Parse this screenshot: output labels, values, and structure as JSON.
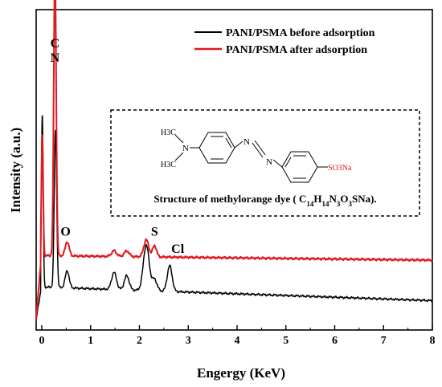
{
  "chart_data": {
    "type": "line",
    "title": "",
    "xlabel": "Engergy (KeV)",
    "ylabel": "Intensity (a.u.)",
    "xlim": [
      -0.15,
      8
    ],
    "xticks": [
      "0",
      "1",
      "2",
      "3",
      "4",
      "5",
      "6",
      "7",
      "8"
    ],
    "grid": false,
    "legend_position": "top-right",
    "series": [
      {
        "name": "PANI/PSMA before adsorption",
        "color": "#000000",
        "baseline": 0.12,
        "baseline_slope": -0.006,
        "peaks": [
          {
            "e": 0.01,
            "h": 0.6,
            "w": 0.018
          },
          {
            "e": 0.28,
            "h": 0.55,
            "w": 0.025
          },
          {
            "e": 0.52,
            "h": 0.06,
            "w": 0.04
          },
          {
            "e": 1.48,
            "h": 0.06,
            "w": 0.05
          },
          {
            "e": 1.74,
            "h": 0.05,
            "w": 0.05
          },
          {
            "e": 2.14,
            "h": 0.16,
            "w": 0.06
          },
          {
            "e": 2.31,
            "h": 0.04,
            "w": 0.05
          },
          {
            "e": 2.62,
            "h": 0.09,
            "w": 0.05
          }
        ]
      },
      {
        "name": "PANI/PSMA after adsorption",
        "color": "#e0191f",
        "baseline": 0.23,
        "baseline_slope": -0.002,
        "peaks": [
          {
            "e": 0.01,
            "h": 0.42,
            "w": 0.018
          },
          {
            "e": 0.27,
            "h": 1.0,
            "w": 0.025
          },
          {
            "e": 0.52,
            "h": 0.05,
            "w": 0.04
          },
          {
            "e": 1.48,
            "h": 0.02,
            "w": 0.05
          },
          {
            "e": 1.74,
            "h": 0.02,
            "w": 0.05
          },
          {
            "e": 2.14,
            "h": 0.06,
            "w": 0.05
          },
          {
            "e": 2.31,
            "h": 0.04,
            "w": 0.04
          }
        ]
      }
    ],
    "annotations": [
      {
        "text": "C",
        "e": 0.27,
        "above": 0.96
      },
      {
        "text": "N",
        "e": 0.27,
        "above": 0.91
      },
      {
        "text": "O",
        "e": 0.52,
        "above": 0.3
      },
      {
        "text": "S",
        "e": 2.31,
        "above": 0.3
      },
      {
        "text": "Cl",
        "e": 2.62,
        "above": 0.24
      }
    ],
    "inset": {
      "caption": "Structure of methylorange dye ( C14H14N3O3SNa).",
      "formula_main": "Structure of methylorange dye ( C",
      "formula_parts": [
        {
          "t": "14",
          "sub": true
        },
        {
          "t": "H",
          "sub": false
        },
        {
          "t": "14",
          "sub": true
        },
        {
          "t": "N",
          "sub": false
        },
        {
          "t": "3",
          "sub": true
        },
        {
          "t": "O",
          "sub": false
        },
        {
          "t": "3",
          "sub": true
        },
        {
          "t": "SNa).",
          "sub": false
        }
      ],
      "molecule_labels": {
        "methyl_top": "H3C",
        "methyl_bottom": "H3C",
        "amine": "N",
        "azo_n1": "N",
        "azo_n2": "N",
        "sulfonate": "SO3Na"
      }
    }
  }
}
